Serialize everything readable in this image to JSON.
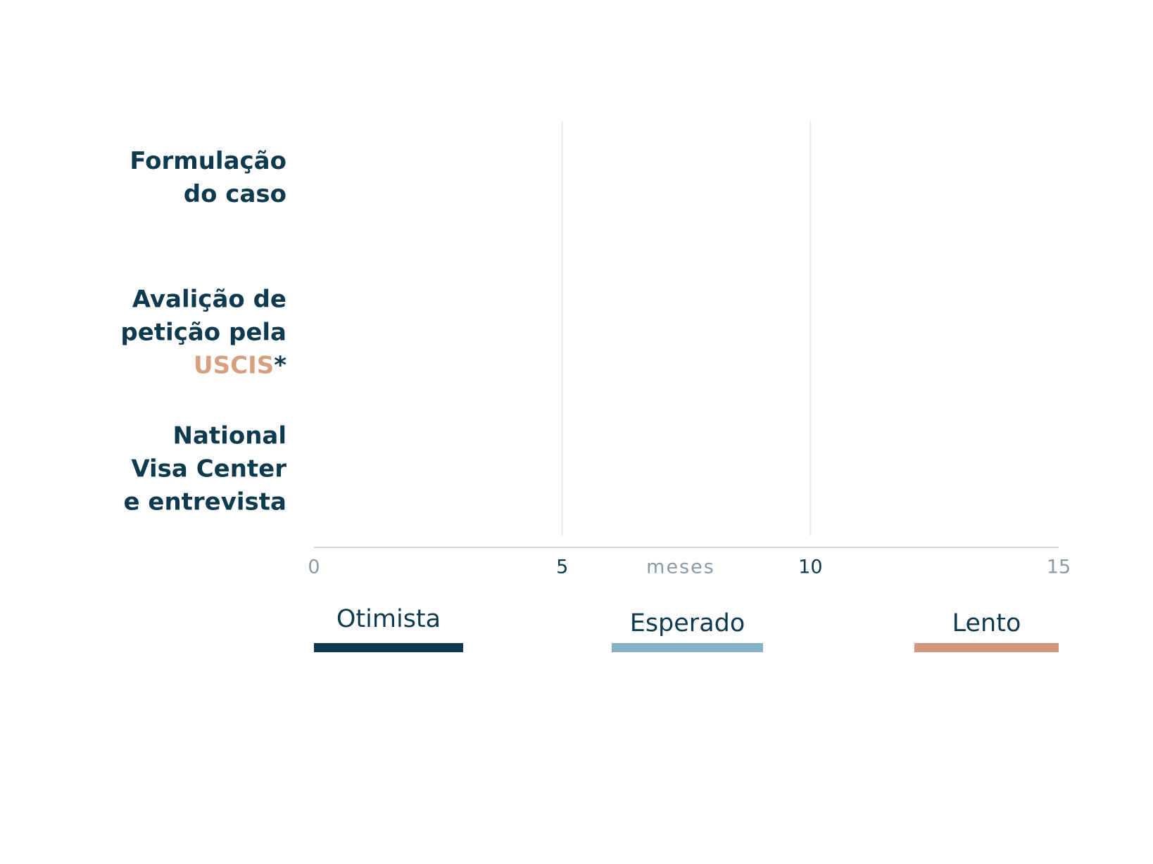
{
  "chart_data": {
    "type": "bar",
    "orientation": "horizontal",
    "categories": [
      "Formulação do caso",
      "Avalição de petição pela USCIS*",
      "National Visa Center e entrevista"
    ],
    "series": [
      {
        "name": "Otimista",
        "color": "#0d3a4f",
        "values": [
          null,
          null,
          null
        ]
      },
      {
        "name": "Esperado",
        "color": "#85b3c6",
        "values": [
          null,
          null,
          null
        ]
      },
      {
        "name": "Lento",
        "color": "#d4967a",
        "values": [
          null,
          null,
          null
        ]
      }
    ],
    "x_label": "meses",
    "xlim": [
      0,
      15
    ],
    "xticks": [
      0,
      5,
      10,
      15
    ],
    "grid": true,
    "highlight_color": "#d4a07f"
  }
}
